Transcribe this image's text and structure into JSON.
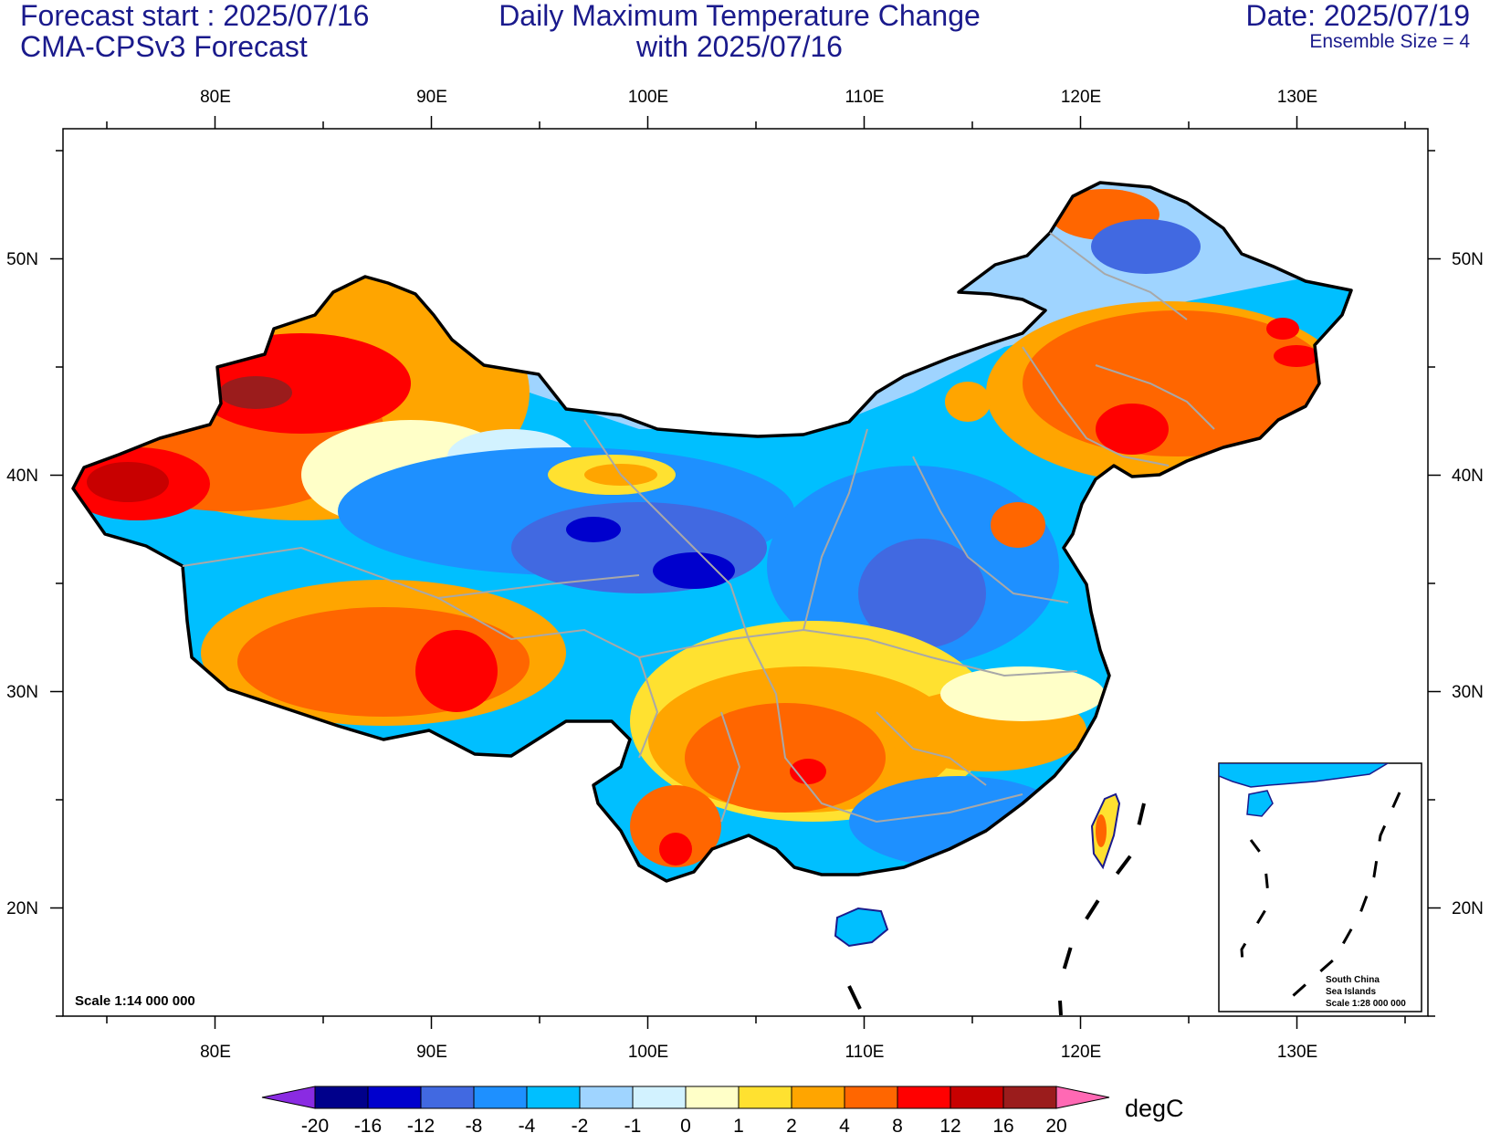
{
  "header": {
    "forecast_start": "Forecast start : 2025/07/16",
    "model": "CMA-CPSv3 Forecast",
    "title_line1": "Daily Maximum Temperature Change",
    "title_line2": "with 2025/07/16",
    "date": "Date: 2025/07/19",
    "ensemble": "Ensemble Size = 4"
  },
  "map": {
    "lon_labels": [
      "80E",
      "90E",
      "100E",
      "110E",
      "120E",
      "130E"
    ],
    "lat_labels": [
      "50N",
      "40N",
      "30N",
      "20N"
    ],
    "scale_main": "Scale 1:14 000 000",
    "inset_line1": "South China",
    "inset_line2": "Sea Islands",
    "inset_line3": "Scale 1:28 000 000"
  },
  "colorbar": {
    "labels": [
      "-20",
      "-16",
      "-12",
      "-8",
      "-4",
      "-2",
      "-1",
      "0",
      "1",
      "2",
      "4",
      "8",
      "12",
      "16",
      "20"
    ],
    "colors": [
      "#00008b",
      "#0000cd",
      "#4169e1",
      "#1e90ff",
      "#00bfff",
      "#9fd4ff",
      "#d2f2ff",
      "#ffffc8",
      "#ffe130",
      "#ffa500",
      "#ff6600",
      "#ff0000",
      "#c80000",
      "#9b1c1c"
    ],
    "under_color": "#8a2be2",
    "over_color": "#ff69b4",
    "units": "degC"
  }
}
